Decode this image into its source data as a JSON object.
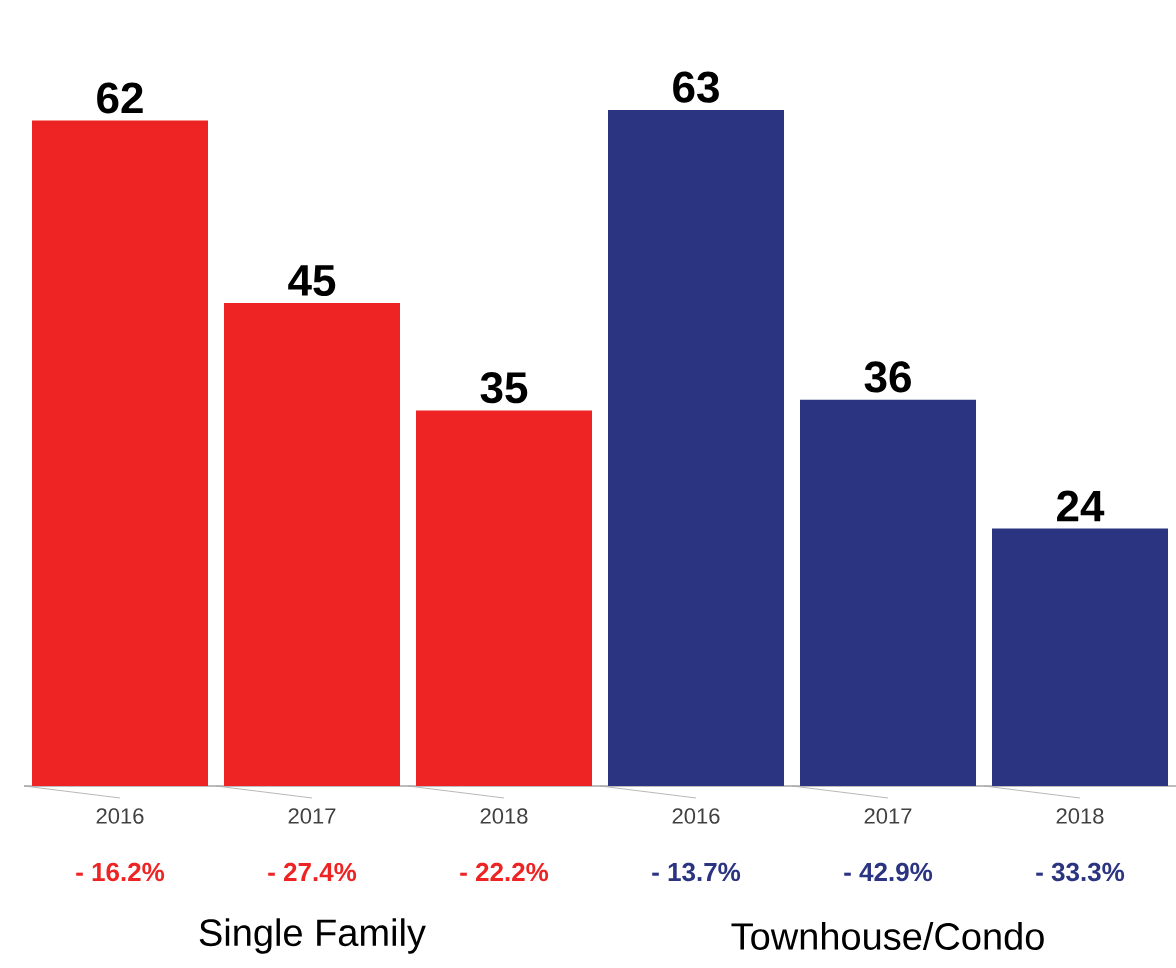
{
  "chart_data": {
    "type": "bar",
    "categories": [
      "2016",
      "2017",
      "2018",
      "2016",
      "2017",
      "2018"
    ],
    "values": [
      62,
      45,
      35,
      63,
      36,
      24
    ],
    "colors": [
      "#ee2424",
      "#ee2424",
      "#ee2424",
      "#2b3480",
      "#2b3480",
      "#2b3480"
    ],
    "data_labels": true,
    "annotations": [
      "- 16.2%",
      "- 27.4%",
      "- 22.2%",
      "- 13.7%",
      "- 42.9%",
      "- 33.3%",
      "Single Family",
      "Townhouse/Condo"
    ]
  }
}
